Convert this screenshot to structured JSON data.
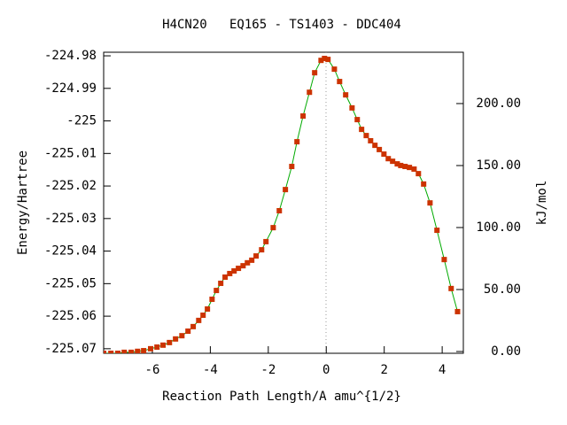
{
  "chart_data": {
    "type": "line",
    "title": "H4CN20   EQ165 - TS1403 - DDC404",
    "x_label": "Reaction Path Length/A amu^{1/2}",
    "y_label": "Energy/Hartree",
    "y2_label": "kJ/mol",
    "xlim": [
      -7.68,
      4.73
    ],
    "xticks": [
      -6,
      -4,
      -2,
      0,
      2,
      4
    ],
    "ylim": [
      -225.0714,
      -224.9789
    ],
    "yticks": [
      -225.07,
      -225.06,
      -225.05,
      -225.04,
      -225.03,
      -225.02,
      -225.01,
      -225.0,
      -224.99,
      -224.98
    ],
    "y2lim": [
      -1.43,
      241.4
    ],
    "y2ticks": [
      {
        "value": 0,
        "label": "0.00"
      },
      {
        "value": 50,
        "label": "50.00"
      },
      {
        "value": 100,
        "label": "100.00"
      },
      {
        "value": 150,
        "label": "150.00"
      },
      {
        "value": 200,
        "label": "200.00"
      }
    ],
    "color": "#00aa00",
    "marker_color": "#cc3300",
    "x": [
      -7.68,
      -7.43,
      -7.19,
      -6.97,
      -6.73,
      -6.51,
      -6.3,
      -6.06,
      -5.84,
      -5.63,
      -5.41,
      -5.2,
      -4.98,
      -4.77,
      -4.59,
      -4.4,
      -4.25,
      -4.1,
      -3.94,
      -3.79,
      -3.64,
      -3.49,
      -3.33,
      -3.18,
      -3.03,
      -2.87,
      -2.72,
      -2.57,
      -2.42,
      -2.23,
      -2.08,
      -1.83,
      -1.62,
      -1.41,
      -1.19,
      -1.01,
      -0.8,
      -0.58,
      -0.4,
      -0.18,
      -0.06,
      0.06,
      0.28,
      0.46,
      0.67,
      0.89,
      1.07,
      1.22,
      1.38,
      1.53,
      1.68,
      1.83,
      1.99,
      2.14,
      2.29,
      2.45,
      2.57,
      2.72,
      2.87,
      3.03,
      3.18,
      3.36,
      3.58,
      3.82,
      4.07,
      4.31,
      4.53
    ],
    "values": [
      -225.0714,
      -225.0714,
      -225.0714,
      -225.0711,
      -225.0711,
      -225.0708,
      -225.0706,
      -225.07,
      -225.0695,
      -225.0689,
      -225.0681,
      -225.067,
      -225.066,
      -225.0646,
      -225.0632,
      -225.0613,
      -225.0597,
      -225.0578,
      -225.0548,
      -225.0521,
      -225.0499,
      -225.048,
      -225.0469,
      -225.0461,
      -225.0453,
      -225.0445,
      -225.0436,
      -225.0428,
      -225.0415,
      -225.0396,
      -225.0371,
      -225.0328,
      -225.0276,
      -225.0211,
      -225.014,
      -225.0064,
      -224.9985,
      -224.9912,
      -224.9852,
      -224.9814,
      -224.9808,
      -224.9811,
      -224.9841,
      -224.9879,
      -224.992,
      -224.996,
      -224.9996,
      -225.0026,
      -225.0045,
      -225.0061,
      -225.0075,
      -225.0088,
      -225.0102,
      -225.0116,
      -225.0124,
      -225.0132,
      -225.0137,
      -225.014,
      -225.0143,
      -225.0148,
      -225.0162,
      -225.0194,
      -225.0252,
      -225.0336,
      -225.0426,
      -225.0515,
      -225.0586
    ]
  }
}
